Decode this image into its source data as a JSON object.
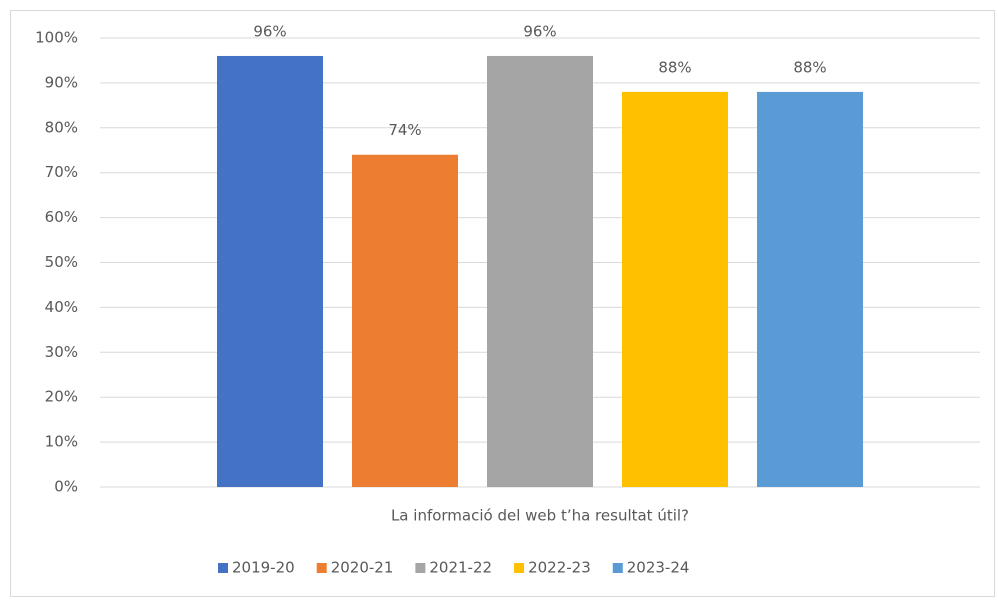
{
  "chart_data": {
    "type": "bar",
    "categories": [
      "La informació del web t’ha resultat útil?"
    ],
    "series": [
      {
        "name": "2019-20",
        "color": "#4472c4",
        "values": [
          96
        ],
        "value_labels": [
          "96%"
        ]
      },
      {
        "name": "2020-21",
        "color": "#ed7d31",
        "values": [
          74
        ],
        "value_labels": [
          "74%"
        ]
      },
      {
        "name": "2021-22",
        "color": "#a5a5a5",
        "values": [
          96
        ],
        "value_labels": [
          "96%"
        ]
      },
      {
        "name": "2022-23",
        "color": "#ffc000",
        "values": [
          88
        ],
        "value_labels": [
          "88%"
        ]
      },
      {
        "name": "2023-24",
        "color": "#5b9bd5",
        "values": [
          88
        ],
        "value_labels": [
          "88%"
        ]
      }
    ],
    "ylim": [
      0,
      100
    ],
    "yticks": [
      {
        "value": 0,
        "label": "0%"
      },
      {
        "value": 10,
        "label": "10%"
      },
      {
        "value": 20,
        "label": "20%"
      },
      {
        "value": 30,
        "label": "30%"
      },
      {
        "value": 40,
        "label": "40%"
      },
      {
        "value": 50,
        "label": "50%"
      },
      {
        "value": 60,
        "label": "60%"
      },
      {
        "value": 70,
        "label": "70%"
      },
      {
        "value": 80,
        "label": "80%"
      },
      {
        "value": 90,
        "label": "90%"
      },
      {
        "value": 100,
        "label": "100%"
      }
    ],
    "grid": true,
    "legend": "bottom"
  }
}
